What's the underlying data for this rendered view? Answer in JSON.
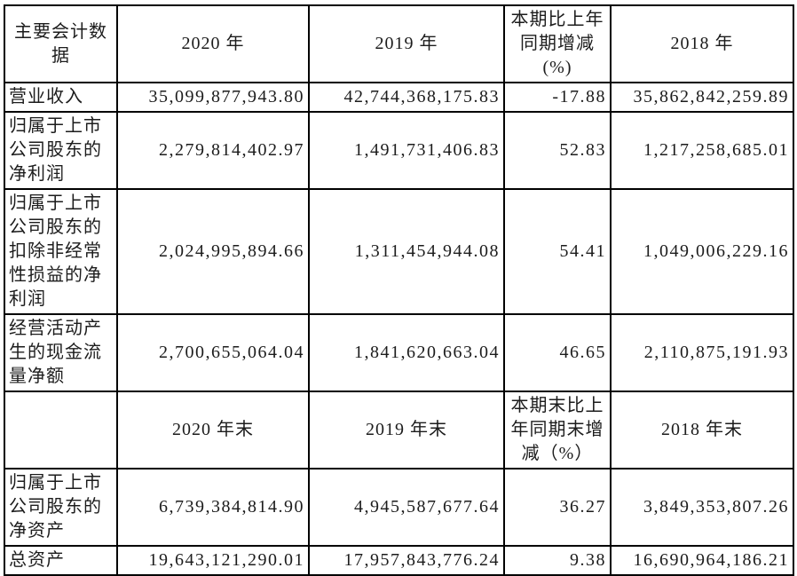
{
  "page": {
    "background_color": "#ffffff",
    "border_color": "#000000",
    "text_color": "#1c1c1c"
  },
  "table": {
    "header_period": {
      "metric": "主要会计数据",
      "y2020": "2020 年",
      "y2019": "2019 年",
      "change": "本期比上年\n同期增减\n(%)",
      "y2018": "2018 年"
    },
    "rows_period": [
      {
        "label": "营业收入",
        "v2020": "35,099,877,943.80",
        "v2019": "42,744,368,175.83",
        "change": "-17.88",
        "v2018": "35,862,842,259.89"
      },
      {
        "label": "归属于上市公司股东的净利润",
        "v2020": "2,279,814,402.97",
        "v2019": "1,491,731,406.83",
        "change": "52.83",
        "v2018": "1,217,258,685.01"
      },
      {
        "label": "归属于上市公司股东的扣除非经常性损益的净利润",
        "v2020": "2,024,995,894.66",
        "v2019": "1,311,454,944.08",
        "change": "54.41",
        "v2018": "1,049,006,229.16"
      },
      {
        "label": "经营活动产生的现金流量净额",
        "v2020": "2,700,655,064.04",
        "v2019": "1,841,620,663.04",
        "change": "46.65",
        "v2018": "2,110,875,191.93"
      }
    ],
    "header_end": {
      "metric": "",
      "y2020": "2020 年末",
      "y2019": "2019 年末",
      "change": "本期末比上\n年同期末增\n减（%）",
      "y2018": "2018 年末"
    },
    "rows_end": [
      {
        "label": "归属于上市公司股东的净资产",
        "v2020": "6,739,384,814.90",
        "v2019": "4,945,587,677.64",
        "change": "36.27",
        "v2018": "3,849,353,807.26"
      },
      {
        "label": "总资产",
        "v2020": "19,643,121,290.01",
        "v2019": "17,957,843,776.24",
        "change": "9.38",
        "v2018": "16,690,964,186.21"
      }
    ]
  }
}
